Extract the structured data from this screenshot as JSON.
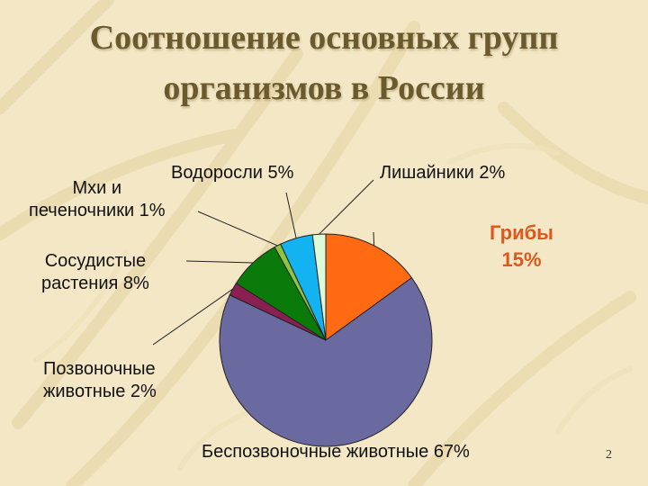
{
  "slide": {
    "title_line1": "Соотношение основных групп",
    "title_line2": "организмов в России",
    "page_number": "2"
  },
  "colors": {
    "background": "#f3e7c6",
    "title": "#6b5a2d",
    "fungi_label": "#e0571d"
  },
  "chart_data": {
    "type": "pie",
    "start_angle_deg": 0,
    "direction": "clockwise",
    "slices": [
      {
        "label": "Грибы 15%",
        "value": 15,
        "color": "#ff6a13"
      },
      {
        "label": "Беспозвоночные животные 67%",
        "value": 67,
        "color": "#6a6aa0"
      },
      {
        "label": "Позвоночные животные 2%",
        "value": 2,
        "color": "#8a1f52"
      },
      {
        "label": "Сосудистые растения 8%",
        "value": 8,
        "color": "#0a7a0a"
      },
      {
        "label": "Мхи и печеночники 1%",
        "value": 1,
        "color": "#8cc63f"
      },
      {
        "label": "Водоросли 5%",
        "value": 5,
        "color": "#12b3f0"
      },
      {
        "label": "Лишайники 2%",
        "value": 2,
        "color": "#dcfbd6"
      }
    ],
    "labels": {
      "fungi": "Грибы\n15%",
      "invertebrates": "Беспозвоночные животные 67%",
      "vertebrates": "Позвоночные\nживотные 2%",
      "vascular": "Сосудистые\nрастения 8%",
      "mosses": "Мхи и\nпеченочники 1%",
      "algae": "Водоросли 5%",
      "lichens": "Лишайники 2%"
    },
    "legend": "none"
  }
}
